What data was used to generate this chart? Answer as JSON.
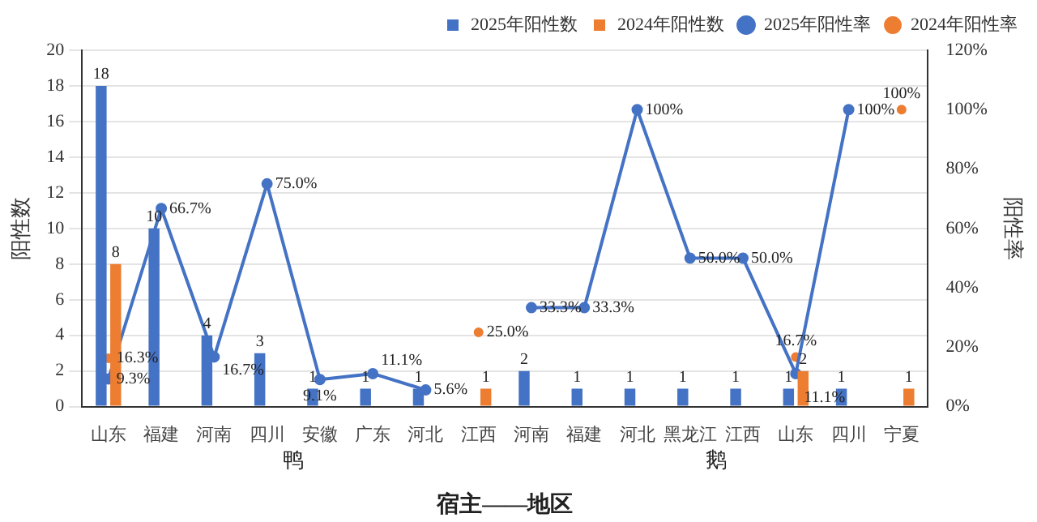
{
  "chart_data": {
    "type": "bar",
    "categories": [
      "山东",
      "福建",
      "河南",
      "四川",
      "安徽",
      "广东",
      "河北",
      "江西",
      "河南",
      "福建",
      "河北",
      "黑龙江",
      "江西",
      "山东",
      "四川",
      "宁夏"
    ],
    "xlabel": "宿主——地区",
    "ylabel": "阳性数",
    "y2label": "阳性率",
    "annotations": [
      "鸭",
      "鹅"
    ],
    "ylim": [
      0,
      20
    ],
    "yticks": [
      0,
      2,
      4,
      6,
      8,
      10,
      12,
      14,
      16,
      18,
      20
    ],
    "y2lim": [
      0,
      120
    ],
    "y2ticks": [
      {
        "value": 0,
        "label": "0%"
      },
      {
        "value": 20,
        "label": "20%"
      },
      {
        "value": 40,
        "label": "40%"
      },
      {
        "value": 60,
        "label": "60%"
      },
      {
        "value": 80,
        "label": "80%"
      },
      {
        "value": 100,
        "label": "100%"
      },
      {
        "value": 120,
        "label": "120%"
      }
    ],
    "grid": "y",
    "legend": "top right",
    "marker": "circle",
    "series": [
      {
        "name": "2025年阳性数",
        "color": "#4472c4",
        "values": [
          18,
          10,
          4,
          3,
          1,
          1,
          1,
          null,
          2,
          1,
          1,
          1,
          1,
          1,
          1,
          null
        ],
        "value_labels": [
          "18",
          "10",
          "4",
          "3",
          "1",
          "1",
          "1",
          null,
          "2",
          "1",
          "1",
          "1",
          "1",
          "1",
          "1",
          null
        ]
      },
      {
        "name": "2024年阳性数",
        "color": "#ed7d31",
        "values": [
          8,
          null,
          null,
          null,
          null,
          null,
          null,
          1,
          null,
          null,
          null,
          null,
          null,
          2,
          null,
          1
        ],
        "value_labels": [
          "8",
          null,
          null,
          null,
          null,
          null,
          null,
          "1",
          null,
          null,
          null,
          null,
          null,
          "2",
          null,
          "1"
        ]
      },
      {
        "name": "2025年阳性率",
        "type": "line",
        "axis": "y2",
        "color": "#4472c4",
        "values": [
          9.3,
          66.7,
          16.7,
          75.0,
          9.1,
          11.1,
          5.6,
          null,
          33.3,
          33.3,
          100,
          50.0,
          50.0,
          11.1,
          100,
          null
        ],
        "value_labels": [
          "9.3%",
          "66.7%",
          "16.7%",
          "75.0%",
          "9.1%",
          "11.1%",
          "5.6%",
          null,
          "33.3%",
          "33.3%",
          "100%",
          "50.0%",
          "50.0%",
          "11.1%",
          "100%",
          null
        ]
      },
      {
        "name": "2024年阳性率",
        "type": "scatter",
        "axis": "y2",
        "color": "#ed7d31",
        "values": [
          16.3,
          null,
          null,
          null,
          null,
          null,
          null,
          25.0,
          null,
          null,
          null,
          null,
          null,
          16.7,
          null,
          100
        ],
        "value_labels": [
          "16.3%",
          null,
          null,
          null,
          null,
          null,
          null,
          "25.0%",
          null,
          null,
          null,
          null,
          null,
          "16.7%",
          null,
          "100%"
        ]
      }
    ]
  }
}
